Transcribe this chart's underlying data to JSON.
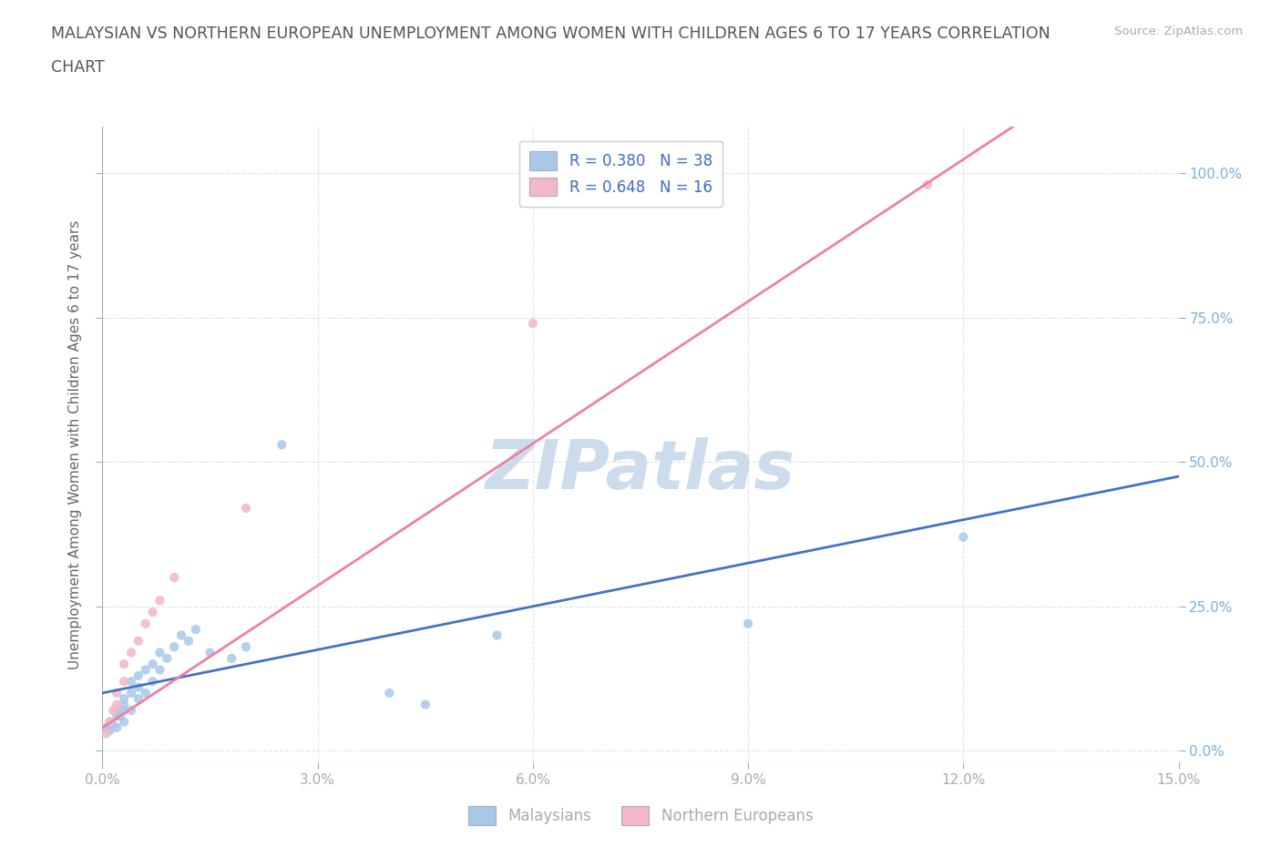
{
  "title_line1": "MALAYSIAN VS NORTHERN EUROPEAN UNEMPLOYMENT AMONG WOMEN WITH CHILDREN AGES 6 TO 17 YEARS CORRELATION",
  "title_line2": "CHART",
  "source_text": "Source: ZipAtlas.com",
  "ylabel": "Unemployment Among Women with Children Ages 6 to 17 years",
  "xlim": [
    0.0,
    0.15
  ],
  "ylim": [
    -0.02,
    1.08
  ],
  "xticks": [
    0.0,
    0.03,
    0.06,
    0.09,
    0.12,
    0.15
  ],
  "xticklabels": [
    "0.0%",
    "3.0%",
    "6.0%",
    "9.0%",
    "12.0%",
    "15.0%"
  ],
  "yticks": [
    0.0,
    0.25,
    0.5,
    0.75,
    1.0
  ],
  "yticklabels_right": [
    "0.0%",
    "25.0%",
    "50.0%",
    "75.0%",
    "100.0%"
  ],
  "legend_r1": "R = 0.380   N = 38",
  "legend_r2": "R = 0.648   N = 16",
  "watermark": "ZIPatlas",
  "watermark_color": "#ccdcec",
  "blue_scatter_color": "#a8c8e8",
  "pink_scatter_color": "#f4b8c8",
  "blue_line_color": "#4472c4",
  "pink_line_color": "#f080a0",
  "right_tick_color": "#7ab0d8",
  "legend_text_color": "#4472c4",
  "grid_color": "#dce4f0",
  "background_color": "#ffffff",
  "title_color": "#555555",
  "axis_label_color": "#666666",
  "tick_color": "#aaaaaa",
  "legend_box_color": "#e8f0f8",
  "malaysians_x": [
    0.0005,
    0.001,
    0.001,
    0.0015,
    0.002,
    0.002,
    0.002,
    0.0025,
    0.003,
    0.003,
    0.003,
    0.003,
    0.004,
    0.004,
    0.004,
    0.005,
    0.005,
    0.005,
    0.006,
    0.006,
    0.007,
    0.007,
    0.008,
    0.008,
    0.009,
    0.01,
    0.011,
    0.012,
    0.013,
    0.015,
    0.018,
    0.02,
    0.025,
    0.04,
    0.045,
    0.055,
    0.09,
    0.12
  ],
  "malaysians_y": [
    0.04,
    0.035,
    0.05,
    0.045,
    0.04,
    0.06,
    0.07,
    0.06,
    0.05,
    0.07,
    0.08,
    0.09,
    0.07,
    0.1,
    0.12,
    0.09,
    0.11,
    0.13,
    0.1,
    0.14,
    0.12,
    0.15,
    0.14,
    0.17,
    0.16,
    0.18,
    0.2,
    0.19,
    0.21,
    0.17,
    0.16,
    0.18,
    0.53,
    0.1,
    0.08,
    0.2,
    0.22,
    0.37
  ],
  "northern_europeans_x": [
    0.0005,
    0.001,
    0.0015,
    0.002,
    0.002,
    0.003,
    0.003,
    0.004,
    0.005,
    0.006,
    0.007,
    0.008,
    0.01,
    0.02,
    0.06,
    0.115
  ],
  "northern_europeans_y": [
    0.03,
    0.05,
    0.07,
    0.08,
    0.1,
    0.12,
    0.15,
    0.17,
    0.19,
    0.22,
    0.24,
    0.26,
    0.3,
    0.42,
    0.74,
    0.98
  ],
  "blue_regression_slope": 2.5,
  "blue_regression_intercept": 0.1,
  "pink_regression_slope": 8.2,
  "pink_regression_intercept": 0.04
}
